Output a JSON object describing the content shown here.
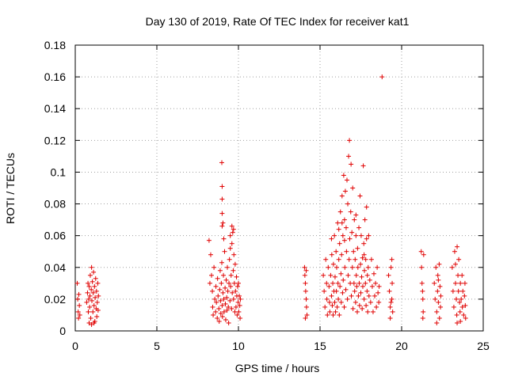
{
  "chart_data": {
    "type": "scatter",
    "title": "Day 130 of 2019, Rate Of TEC Index for receiver kat1",
    "xlabel": "GPS time / hours",
    "ylabel": "ROTI / TECUs",
    "xlim": [
      0,
      25
    ],
    "ylim": [
      0,
      0.18
    ],
    "xticks": [
      "0",
      "5",
      "10",
      "15",
      "20",
      "25"
    ],
    "yticks": [
      "0",
      "0.02",
      "0.04",
      "0.06",
      "0.08",
      "0.1",
      "0.12",
      "0.14",
      "0.16",
      "0.18"
    ],
    "grid": true,
    "marker": "plus",
    "color": "#e00000",
    "series": [
      {
        "name": "ROTI",
        "points": [
          [
            0.12,
            0.03
          ],
          [
            0.15,
            0.02
          ],
          [
            0.18,
            0.012
          ],
          [
            0.2,
            0.008
          ],
          [
            0.22,
            0.023
          ],
          [
            0.25,
            0.016
          ],
          [
            0.28,
            0.01
          ],
          [
            0.7,
            0.018
          ],
          [
            0.75,
            0.024
          ],
          [
            0.78,
            0.03
          ],
          [
            0.8,
            0.012
          ],
          [
            0.82,
            0.02
          ],
          [
            0.85,
            0.028
          ],
          [
            0.88,
            0.015
          ],
          [
            0.9,
            0.022
          ],
          [
            0.92,
            0.035
          ],
          [
            0.95,
            0.008
          ],
          [
            0.98,
            0.026
          ],
          [
            1.0,
            0.04
          ],
          [
            1.02,
            0.019
          ],
          [
            1.05,
            0.031
          ],
          [
            1.08,
            0.012
          ],
          [
            1.1,
            0.024
          ],
          [
            1.12,
            0.037
          ],
          [
            1.15,
            0.016
          ],
          [
            1.18,
            0.028
          ],
          [
            1.2,
            0.006
          ],
          [
            1.22,
            0.021
          ],
          [
            1.25,
            0.033
          ],
          [
            1.28,
            0.014
          ],
          [
            1.3,
            0.025
          ],
          [
            1.32,
            0.009
          ],
          [
            1.35,
            0.018
          ],
          [
            1.38,
            0.03
          ],
          [
            1.4,
            0.013
          ],
          [
            1.42,
            0.022
          ],
          [
            0.85,
            0.005
          ],
          [
            1.0,
            0.004
          ],
          [
            1.15,
            0.005
          ],
          [
            8.2,
            0.057
          ],
          [
            8.25,
            0.03
          ],
          [
            8.3,
            0.048
          ],
          [
            8.35,
            0.035
          ],
          [
            8.4,
            0.025
          ],
          [
            8.42,
            0.015
          ],
          [
            8.45,
            0.01
          ],
          [
            8.5,
            0.04
          ],
          [
            8.55,
            0.02
          ],
          [
            8.6,
            0.012
          ],
          [
            8.62,
            0.028
          ],
          [
            8.65,
            0.018
          ],
          [
            8.7,
            0.008
          ],
          [
            8.72,
            0.033
          ],
          [
            8.75,
            0.022
          ],
          [
            8.8,
            0.014
          ],
          [
            8.82,
            0.006
          ],
          [
            8.85,
            0.026
          ],
          [
            8.88,
            0.038
          ],
          [
            8.9,
            0.019
          ],
          [
            8.92,
            0.011
          ],
          [
            8.95,
            0.03
          ],
          [
            8.98,
            0.043
          ],
          [
            9.0,
            0.016
          ],
          [
            9.02,
            0.009
          ],
          [
            9.05,
            0.024
          ],
          [
            9.08,
            0.035
          ],
          [
            9.1,
            0.02
          ],
          [
            9.12,
            0.012
          ],
          [
            9.15,
            0.05
          ],
          [
            9.18,
            0.027
          ],
          [
            9.2,
            0.017
          ],
          [
            9.22,
            0.007
          ],
          [
            9.25,
            0.032
          ],
          [
            9.28,
            0.021
          ],
          [
            9.3,
            0.013
          ],
          [
            9.32,
            0.04
          ],
          [
            9.35,
            0.025
          ],
          [
            9.38,
            0.015
          ],
          [
            9.4,
            0.005
          ],
          [
            9.42,
            0.03
          ],
          [
            9.45,
            0.045
          ],
          [
            9.48,
            0.019
          ],
          [
            9.5,
            0.06
          ],
          [
            9.52,
            0.028
          ],
          [
            9.55,
            0.035
          ],
          [
            9.58,
            0.014
          ],
          [
            9.6,
            0.055
          ],
          [
            9.62,
            0.024
          ],
          [
            9.65,
            0.062
          ],
          [
            9.68,
            0.038
          ],
          [
            9.7,
            0.02
          ],
          [
            9.72,
            0.048
          ],
          [
            9.75,
            0.03
          ],
          [
            9.78,
            0.012
          ],
          [
            9.8,
            0.042
          ],
          [
            9.82,
            0.025
          ],
          [
            9.85,
            0.015
          ],
          [
            9.88,
            0.034
          ],
          [
            9.9,
            0.022
          ],
          [
            9.92,
            0.01
          ],
          [
            9.95,
            0.028
          ],
          [
            9.98,
            0.018
          ],
          [
            10.0,
            0.03
          ],
          [
            10.02,
            0.012
          ],
          [
            10.05,
            0.022
          ],
          [
            10.08,
            0.016
          ],
          [
            10.1,
            0.008
          ],
          [
            10.12,
            0.02
          ],
          [
            9.0,
            0.066
          ],
          [
            9.05,
            0.068
          ],
          [
            9.0,
            0.074
          ],
          [
            9.0,
            0.083
          ],
          [
            9.0,
            0.091
          ],
          [
            8.98,
            0.106
          ],
          [
            9.1,
            0.058
          ],
          [
            9.7,
            0.064
          ],
          [
            9.6,
            0.066
          ],
          [
            9.5,
            0.052
          ],
          [
            14.05,
            0.04
          ],
          [
            14.07,
            0.035
          ],
          [
            14.1,
            0.03
          ],
          [
            14.12,
            0.025
          ],
          [
            14.15,
            0.02
          ],
          [
            14.17,
            0.015
          ],
          [
            14.2,
            0.01
          ],
          [
            14.1,
            0.008
          ],
          [
            14.15,
            0.038
          ],
          [
            15.2,
            0.035
          ],
          [
            15.25,
            0.025
          ],
          [
            15.3,
            0.015
          ],
          [
            15.35,
            0.045
          ],
          [
            15.4,
            0.03
          ],
          [
            15.42,
            0.02
          ],
          [
            15.45,
            0.01
          ],
          [
            15.5,
            0.04
          ],
          [
            15.55,
            0.028
          ],
          [
            15.58,
            0.018
          ],
          [
            15.6,
            0.012
          ],
          [
            15.65,
            0.035
          ],
          [
            15.7,
            0.022
          ],
          [
            15.72,
            0.048
          ],
          [
            15.75,
            0.016
          ],
          [
            15.78,
            0.03
          ],
          [
            15.8,
            0.01
          ],
          [
            15.82,
            0.042
          ],
          [
            15.85,
            0.025
          ],
          [
            15.88,
            0.06
          ],
          [
            15.9,
            0.018
          ],
          [
            15.92,
            0.034
          ],
          [
            15.95,
            0.012
          ],
          [
            15.98,
            0.05
          ],
          [
            16.0,
            0.025
          ],
          [
            16.02,
            0.04
          ],
          [
            16.05,
            0.015
          ],
          [
            16.08,
            0.068
          ],
          [
            16.1,
            0.03
          ],
          [
            16.12,
            0.02
          ],
          [
            16.15,
            0.045
          ],
          [
            16.18,
            0.01
          ],
          [
            16.2,
            0.055
          ],
          [
            16.22,
            0.028
          ],
          [
            16.25,
            0.075
          ],
          [
            16.28,
            0.036
          ],
          [
            16.3,
            0.018
          ],
          [
            16.32,
            0.048
          ],
          [
            16.35,
            0.085
          ],
          [
            16.38,
            0.024
          ],
          [
            16.4,
            0.06
          ],
          [
            16.42,
            0.032
          ],
          [
            16.45,
            0.098
          ],
          [
            16.48,
            0.015
          ],
          [
            16.5,
            0.07
          ],
          [
            16.52,
            0.04
          ],
          [
            16.55,
            0.088
          ],
          [
            16.58,
            0.026
          ],
          [
            16.6,
            0.065
          ],
          [
            16.62,
            0.05
          ],
          [
            16.65,
            0.095
          ],
          [
            16.68,
            0.02
          ],
          [
            16.7,
            0.08
          ],
          [
            16.72,
            0.035
          ],
          [
            16.75,
            0.11
          ],
          [
            16.78,
            0.045
          ],
          [
            16.8,
            0.12
          ],
          [
            16.82,
            0.058
          ],
          [
            16.85,
            0.03
          ],
          [
            16.88,
            0.075
          ],
          [
            16.9,
            0.105
          ],
          [
            16.92,
            0.022
          ],
          [
            16.95,
            0.062
          ],
          [
            16.98,
            0.04
          ],
          [
            17.0,
            0.09
          ],
          [
            17.02,
            0.014
          ],
          [
            17.05,
            0.05
          ],
          [
            17.08,
            0.03
          ],
          [
            17.1,
            0.07
          ],
          [
            17.12,
            0.025
          ],
          [
            17.15,
            0.045
          ],
          [
            17.18,
            0.018
          ],
          [
            17.2,
            0.06
          ],
          [
            17.22,
            0.035
          ],
          [
            17.25,
            0.028
          ],
          [
            17.28,
            0.012
          ],
          [
            17.3,
            0.052
          ],
          [
            17.32,
            0.04
          ],
          [
            17.35,
            0.022
          ],
          [
            17.38,
            0.065
          ],
          [
            17.4,
            0.03
          ],
          [
            17.42,
            0.016
          ],
          [
            17.45,
            0.085
          ],
          [
            17.48,
            0.042
          ],
          [
            17.5,
            0.024
          ],
          [
            17.52,
            0.06
          ],
          [
            17.55,
            0.034
          ],
          [
            17.58,
            0.014
          ],
          [
            17.6,
            0.046
          ],
          [
            17.62,
            0.028
          ],
          [
            17.65,
            0.104
          ],
          [
            17.68,
            0.055
          ],
          [
            17.7,
            0.02
          ],
          [
            17.72,
            0.038
          ],
          [
            17.75,
            0.07
          ],
          [
            17.78,
            0.03
          ],
          [
            17.8,
            0.045
          ],
          [
            17.82,
            0.016
          ],
          [
            17.85,
            0.058
          ],
          [
            17.88,
            0.025
          ],
          [
            17.9,
            0.035
          ],
          [
            17.92,
            0.012
          ],
          [
            17.95,
            0.04
          ],
          [
            17.98,
            0.06
          ],
          [
            18.0,
            0.022
          ],
          [
            18.05,
            0.032
          ],
          [
            18.1,
            0.018
          ],
          [
            18.15,
            0.045
          ],
          [
            18.2,
            0.028
          ],
          [
            18.25,
            0.012
          ],
          [
            18.3,
            0.036
          ],
          [
            18.35,
            0.022
          ],
          [
            18.4,
            0.03
          ],
          [
            18.45,
            0.015
          ],
          [
            18.5,
            0.04
          ],
          [
            18.55,
            0.024
          ],
          [
            18.6,
            0.018
          ],
          [
            18.62,
            0.028
          ],
          [
            17.85,
            0.078
          ],
          [
            17.7,
            0.048
          ],
          [
            16.35,
            0.068
          ],
          [
            17.2,
            0.073
          ],
          [
            16.5,
            0.057
          ],
          [
            16.15,
            0.064
          ],
          [
            15.7,
            0.058
          ],
          [
            18.8,
            0.16
          ],
          [
            19.2,
            0.035
          ],
          [
            19.25,
            0.025
          ],
          [
            19.3,
            0.015
          ],
          [
            19.35,
            0.04
          ],
          [
            19.4,
            0.02
          ],
          [
            19.42,
            0.03
          ],
          [
            19.45,
            0.012
          ],
          [
            19.3,
            0.008
          ],
          [
            19.4,
            0.045
          ],
          [
            19.35,
            0.018
          ],
          [
            21.2,
            0.05
          ],
          [
            21.25,
            0.03
          ],
          [
            21.3,
            0.02
          ],
          [
            21.32,
            0.012
          ],
          [
            21.35,
            0.048
          ],
          [
            21.28,
            0.025
          ],
          [
            21.3,
            0.008
          ],
          [
            21.22,
            0.04
          ],
          [
            22.0,
            0.03
          ],
          [
            22.05,
            0.02
          ],
          [
            22.1,
            0.04
          ],
          [
            22.15,
            0.012
          ],
          [
            22.2,
            0.025
          ],
          [
            22.22,
            0.035
          ],
          [
            22.25,
            0.018
          ],
          [
            22.3,
            0.042
          ],
          [
            22.32,
            0.008
          ],
          [
            22.35,
            0.028
          ],
          [
            22.38,
            0.015
          ],
          [
            22.4,
            0.022
          ],
          [
            22.15,
            0.005
          ],
          [
            22.25,
            0.032
          ],
          [
            23.1,
            0.04
          ],
          [
            23.15,
            0.025
          ],
          [
            23.2,
            0.015
          ],
          [
            23.25,
            0.05
          ],
          [
            23.3,
            0.03
          ],
          [
            23.35,
            0.02
          ],
          [
            23.38,
            0.01
          ],
          [
            23.4,
            0.053
          ],
          [
            23.45,
            0.035
          ],
          [
            23.48,
            0.025
          ],
          [
            23.5,
            0.045
          ],
          [
            23.55,
            0.018
          ],
          [
            23.58,
            0.012
          ],
          [
            23.6,
            0.03
          ],
          [
            23.65,
            0.02
          ],
          [
            23.7,
            0.035
          ],
          [
            23.72,
            0.015
          ],
          [
            23.75,
            0.025
          ],
          [
            23.8,
            0.01
          ],
          [
            23.85,
            0.022
          ],
          [
            23.88,
            0.03
          ],
          [
            23.9,
            0.016
          ],
          [
            23.92,
            0.008
          ],
          [
            23.4,
            0.005
          ],
          [
            23.6,
            0.006
          ],
          [
            23.3,
            0.042
          ]
        ]
      }
    ]
  }
}
